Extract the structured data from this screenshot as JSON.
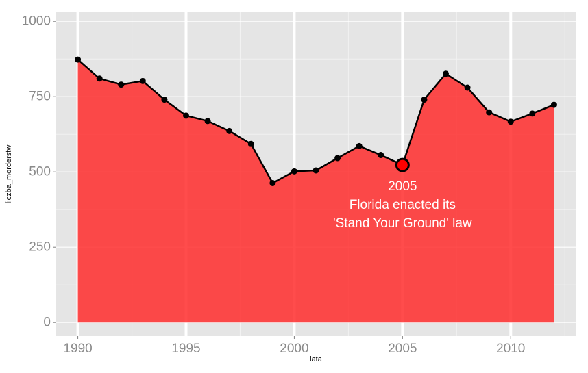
{
  "chart_data": {
    "type": "area",
    "xlabel": "lata",
    "ylabel": "liczba_morderstw",
    "xlim": [
      1989,
      2013
    ],
    "ylim": [
      -45,
      1030
    ],
    "x_ticks": [
      "1990",
      "1995",
      "2000",
      "2005",
      "2010"
    ],
    "y_ticks": [
      "0",
      "250",
      "500",
      "750",
      "1000"
    ],
    "grid": true,
    "x": [
      1990,
      1991,
      1992,
      1993,
      1994,
      1995,
      1996,
      1997,
      1998,
      1999,
      2000,
      2001,
      2002,
      2003,
      2004,
      2005,
      2006,
      2007,
      2008,
      2009,
      2010,
      2011,
      2012
    ],
    "values": [
      873,
      810,
      790,
      802,
      740,
      687,
      669,
      636,
      593,
      463,
      502,
      505,
      546,
      586,
      556,
      523,
      740,
      826,
      780,
      698,
      667,
      694,
      723
    ],
    "highlight": {
      "x": 2005,
      "y": 523
    },
    "annotation": {
      "x": 2005,
      "y": 390,
      "lines": [
        "2005",
        "Florida enacted its",
        "'Stand Your Ground' law"
      ]
    },
    "colors": {
      "panel": "#e5e5e5",
      "grid_major": "#ffffff",
      "area": "#ff2d2d",
      "line": "#000000",
      "highlight": "#ff0000"
    }
  }
}
